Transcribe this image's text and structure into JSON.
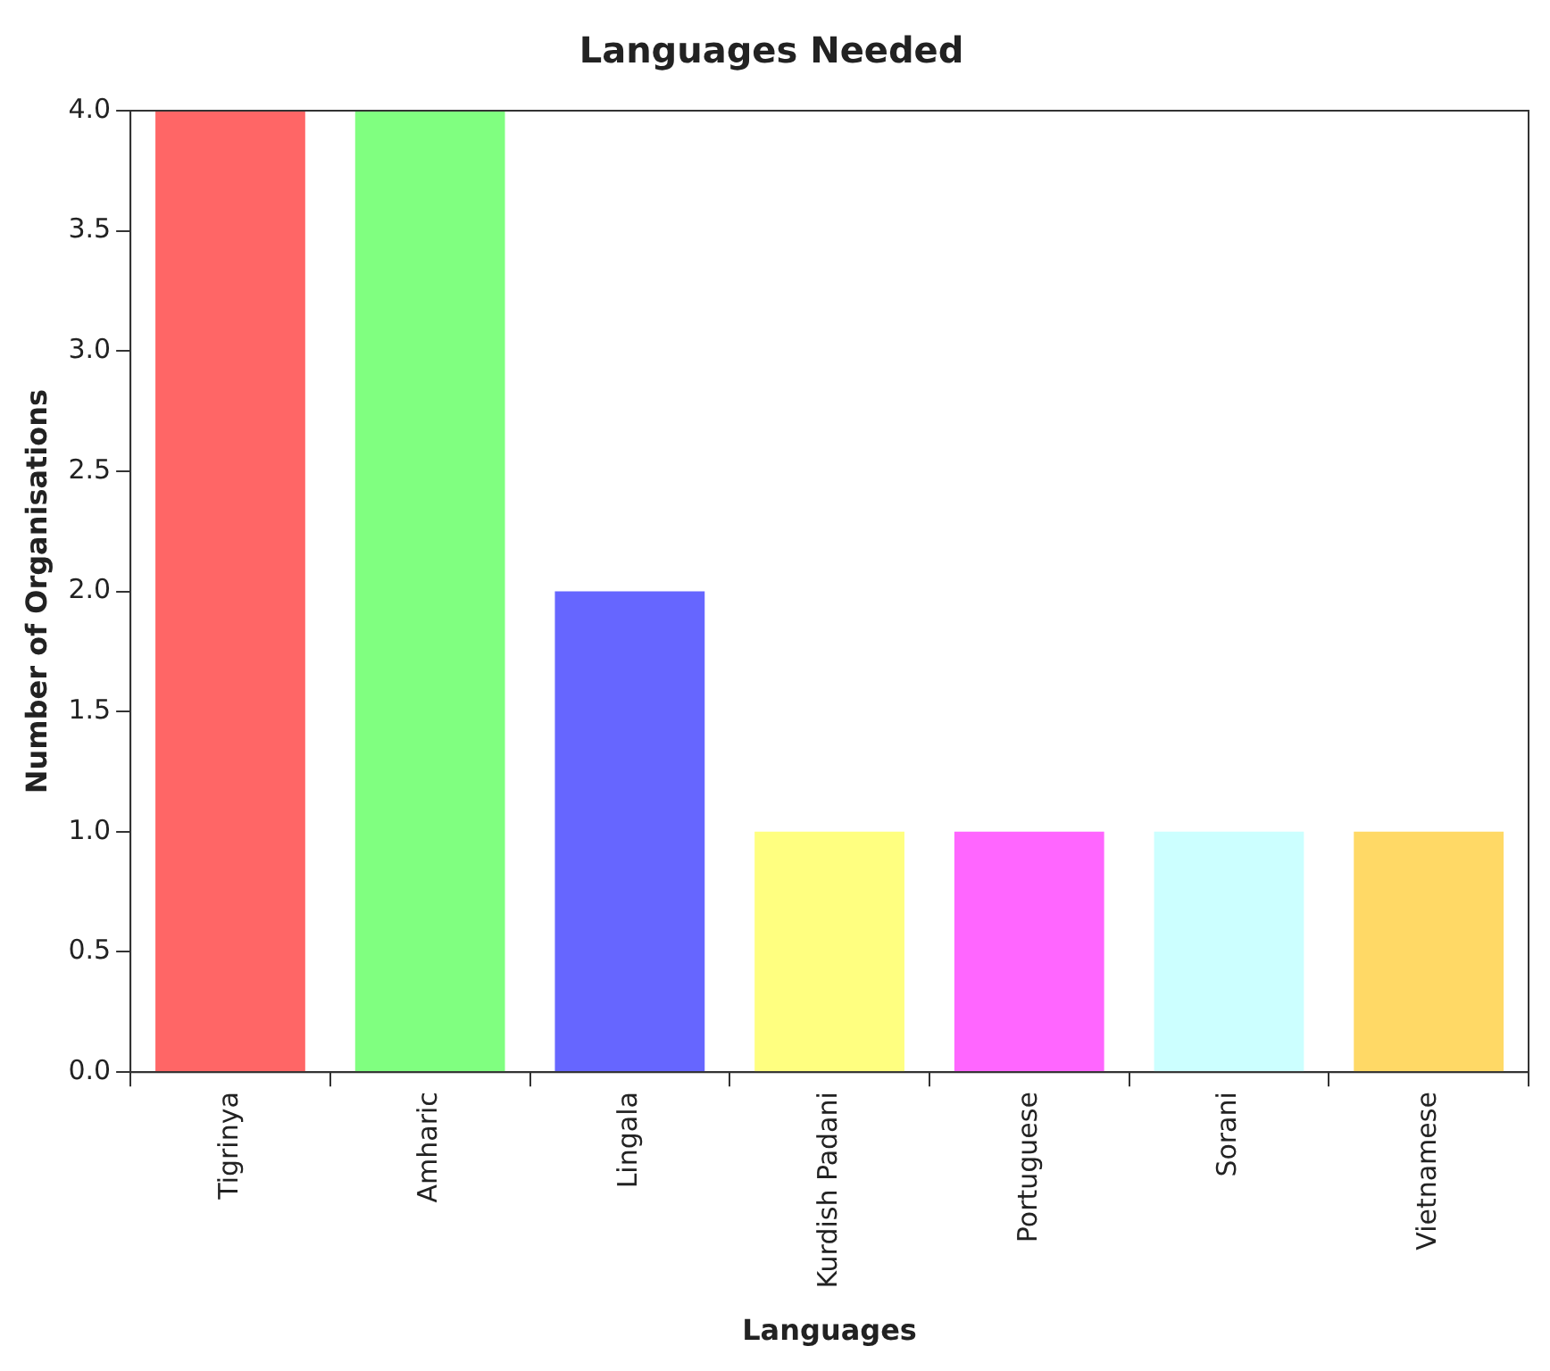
{
  "chart_data": {
    "type": "bar",
    "title": "Languages Needed",
    "xlabel": "Languages",
    "ylabel": "Number of Organisations",
    "categories": [
      "Tigrinya",
      "Amharic",
      "Lingala",
      "Kurdish Padani",
      "Portuguese",
      "Sorani",
      "Vietnamese"
    ],
    "values": [
      4,
      4,
      2,
      1,
      1,
      1,
      1
    ],
    "colors": [
      "#ff6666",
      "#80ff80",
      "#6666ff",
      "#ffff80",
      "#ff66ff",
      "#ccffff",
      "#ffd966"
    ],
    "ylim": [
      0,
      4
    ],
    "yticks": [
      {
        "value": 0,
        "label": "0.0"
      },
      {
        "value": 0.5,
        "label": "0.5"
      },
      {
        "value": 1,
        "label": "1.0"
      },
      {
        "value": 1.5,
        "label": "1.5"
      },
      {
        "value": 2,
        "label": "2.0"
      },
      {
        "value": 2.5,
        "label": "2.5"
      },
      {
        "value": 3,
        "label": "3.0"
      },
      {
        "value": 3.5,
        "label": "3.5"
      },
      {
        "value": 4,
        "label": "4.0"
      }
    ],
    "grid": false,
    "legend": false
  }
}
